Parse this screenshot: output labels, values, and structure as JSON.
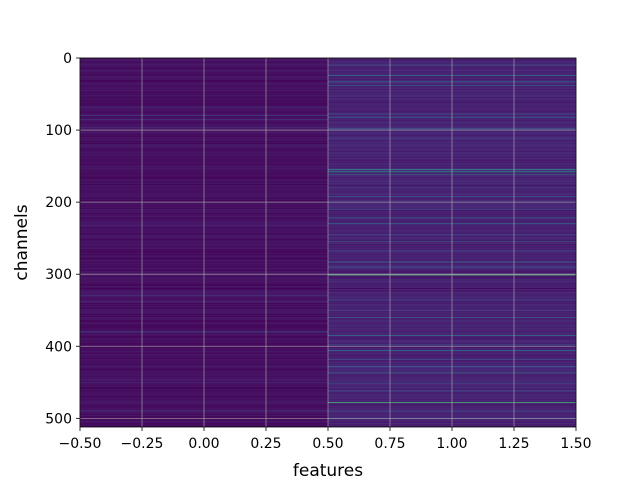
{
  "chart_data": {
    "type": "heatmap",
    "xlabel": "features",
    "ylabel": "channels",
    "xlim": [
      -0.5,
      1.5
    ],
    "ylim": [
      512,
      0
    ],
    "y_inverted": true,
    "x_ticks": [
      "−0.50",
      "−0.25",
      "0.00",
      "0.25",
      "0.50",
      "0.75",
      "1.00",
      "1.25",
      "1.50"
    ],
    "y_ticks": [
      "0",
      "100",
      "200",
      "300",
      "400",
      "500"
    ],
    "grid": true,
    "colormap": "viridis",
    "columns": [
      0,
      1
    ],
    "rows": 512,
    "column_0": {
      "base_value": 0.05,
      "highlights": [
        {
          "channel": 68,
          "value": 0.18
        },
        {
          "channel": 80,
          "value": 0.25
        },
        {
          "channel": 85,
          "value": 0.2
        },
        {
          "channel": 96,
          "value": 0.16
        },
        {
          "channel": 232,
          "value": 0.14
        },
        {
          "channel": 330,
          "value": 0.2
        },
        {
          "channel": 338,
          "value": 0.16
        },
        {
          "channel": 380,
          "value": 0.3
        },
        {
          "channel": 450,
          "value": 0.15
        },
        {
          "channel": 490,
          "value": 0.16
        }
      ]
    },
    "column_1": {
      "base_value": 0.12,
      "highlights": [
        {
          "channel": 10,
          "value": 0.32
        },
        {
          "channel": 24,
          "value": 0.55
        },
        {
          "channel": 33,
          "value": 0.4
        },
        {
          "channel": 38,
          "value": 0.35
        },
        {
          "channel": 78,
          "value": 0.3
        },
        {
          "channel": 82,
          "value": 0.42
        },
        {
          "channel": 98,
          "value": 0.35
        },
        {
          "channel": 112,
          "value": 0.25
        },
        {
          "channel": 155,
          "value": 0.65
        },
        {
          "channel": 158,
          "value": 0.7
        },
        {
          "channel": 162,
          "value": 0.45
        },
        {
          "channel": 180,
          "value": 0.3
        },
        {
          "channel": 192,
          "value": 0.35
        },
        {
          "channel": 210,
          "value": 0.3
        },
        {
          "channel": 222,
          "value": 0.38
        },
        {
          "channel": 230,
          "value": 0.5
        },
        {
          "channel": 245,
          "value": 0.3
        },
        {
          "channel": 255,
          "value": 0.35
        },
        {
          "channel": 268,
          "value": 0.3
        },
        {
          "channel": 283,
          "value": 0.45
        },
        {
          "channel": 290,
          "value": 0.35
        },
        {
          "channel": 301,
          "value": 0.85
        },
        {
          "channel": 320,
          "value": 0.0
        },
        {
          "channel": 336,
          "value": 0.3
        },
        {
          "channel": 350,
          "value": 0.25
        },
        {
          "channel": 360,
          "value": 0.4
        },
        {
          "channel": 385,
          "value": 0.45
        },
        {
          "channel": 398,
          "value": 0.35
        },
        {
          "channel": 406,
          "value": 0.5
        },
        {
          "channel": 418,
          "value": 0.3
        },
        {
          "channel": 428,
          "value": 0.35
        },
        {
          "channel": 437,
          "value": 0.45
        },
        {
          "channel": 452,
          "value": 0.3
        },
        {
          "channel": 462,
          "value": 0.35
        },
        {
          "channel": 478,
          "value": 0.82
        },
        {
          "channel": 490,
          "value": 0.3
        },
        {
          "channel": 500,
          "value": 0.28
        }
      ]
    }
  }
}
